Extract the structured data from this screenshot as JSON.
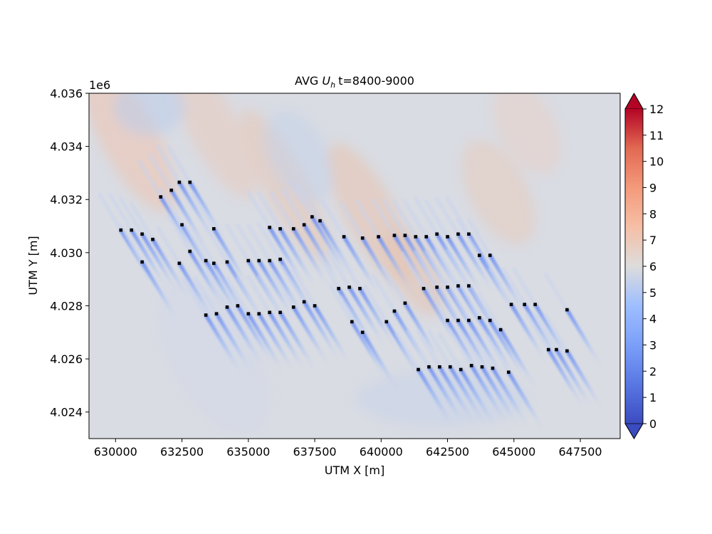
{
  "chart_data": {
    "type": "heatmap",
    "title": "AVG",
    "title_symbol": "U",
    "title_subscript": "h",
    "title_suffix": "t=8400-9000",
    "xlabel": "UTM X [m]",
    "ylabel": "UTM Y [m]",
    "y_offset_label": "1e6",
    "xlim": [
      629000,
      649000
    ],
    "ylim": [
      4023000,
      4036000
    ],
    "x_ticks": [
      630000,
      632500,
      635000,
      637500,
      640000,
      642500,
      645000,
      647500
    ],
    "x_tick_labels": [
      "630000",
      "632500",
      "635000",
      "637500",
      "640000",
      "642500",
      "645000",
      "647500"
    ],
    "y_ticks": [
      4024000,
      4026000,
      4028000,
      4030000,
      4032000,
      4034000,
      4036000
    ],
    "y_tick_labels": [
      "4.024",
      "4.026",
      "4.028",
      "4.030",
      "4.032",
      "4.034",
      "4.036"
    ],
    "colorbar": {
      "min": 0,
      "max": 12,
      "ticks": [
        0,
        1,
        2,
        3,
        4,
        5,
        6,
        7,
        8,
        9,
        10,
        11,
        12
      ],
      "tick_labels": [
        "0",
        "1",
        "2",
        "3",
        "4",
        "5",
        "6",
        "7",
        "8",
        "9",
        "10",
        "11",
        "12"
      ],
      "colormap": "coolwarm",
      "extend": "both"
    },
    "background_value": 6,
    "wake_direction": "towards lower-right (south-southeast)",
    "turbines": [
      [
        630200,
        4030850
      ],
      [
        630600,
        4030850
      ],
      [
        631000,
        4030700
      ],
      [
        631400,
        4030500
      ],
      [
        631000,
        4029650
      ],
      [
        631700,
        4032100
      ],
      [
        632100,
        4032350
      ],
      [
        632400,
        4032650
      ],
      [
        632800,
        4032650
      ],
      [
        632500,
        4031050
      ],
      [
        632800,
        4030050
      ],
      [
        632400,
        4029600
      ],
      [
        633400,
        4029700
      ],
      [
        633700,
        4029600
      ],
      [
        634200,
        4029650
      ],
      [
        633700,
        4030900
      ],
      [
        633400,
        4027650
      ],
      [
        633800,
        4027700
      ],
      [
        634200,
        4027950
      ],
      [
        634600,
        4028000
      ],
      [
        635000,
        4029700
      ],
      [
        635400,
        4029700
      ],
      [
        635800,
        4029700
      ],
      [
        636200,
        4029750
      ],
      [
        635000,
        4027700
      ],
      [
        635400,
        4027700
      ],
      [
        635800,
        4027750
      ],
      [
        636200,
        4027750
      ],
      [
        635800,
        4030950
      ],
      [
        636200,
        4030900
      ],
      [
        636700,
        4030900
      ],
      [
        637100,
        4031050
      ],
      [
        637400,
        4031350
      ],
      [
        637700,
        4031200
      ],
      [
        636700,
        4027950
      ],
      [
        637100,
        4028150
      ],
      [
        637500,
        4028000
      ],
      [
        638600,
        4030600
      ],
      [
        639300,
        4030550
      ],
      [
        639900,
        4030600
      ],
      [
        638400,
        4028650
      ],
      [
        638800,
        4028700
      ],
      [
        639200,
        4028650
      ],
      [
        638900,
        4027400
      ],
      [
        639300,
        4027000
      ],
      [
        640200,
        4027400
      ],
      [
        640500,
        4027800
      ],
      [
        640900,
        4028100
      ],
      [
        640500,
        4030650
      ],
      [
        640900,
        4030650
      ],
      [
        641300,
        4030600
      ],
      [
        641700,
        4030600
      ],
      [
        642100,
        4030700
      ],
      [
        642500,
        4030600
      ],
      [
        642900,
        4030700
      ],
      [
        643300,
        4030700
      ],
      [
        643700,
        4029900
      ],
      [
        644100,
        4029900
      ],
      [
        641600,
        4028650
      ],
      [
        642100,
        4028700
      ],
      [
        642500,
        4028700
      ],
      [
        642900,
        4028750
      ],
      [
        643300,
        4028750
      ],
      [
        642500,
        4027450
      ],
      [
        642900,
        4027450
      ],
      [
        643300,
        4027450
      ],
      [
        643700,
        4027550
      ],
      [
        644100,
        4027450
      ],
      [
        644500,
        4027100
      ],
      [
        641400,
        4025600
      ],
      [
        641800,
        4025700
      ],
      [
        642200,
        4025700
      ],
      [
        642600,
        4025700
      ],
      [
        643000,
        4025600
      ],
      [
        643400,
        4025750
      ],
      [
        643800,
        4025700
      ],
      [
        644200,
        4025650
      ],
      [
        644800,
        4025500
      ],
      [
        644900,
        4028050
      ],
      [
        645400,
        4028050
      ],
      [
        645800,
        4028050
      ],
      [
        646300,
        4026350
      ],
      [
        646600,
        4026350
      ],
      [
        647000,
        4026300
      ],
      [
        647000,
        4027850
      ]
    ]
  }
}
